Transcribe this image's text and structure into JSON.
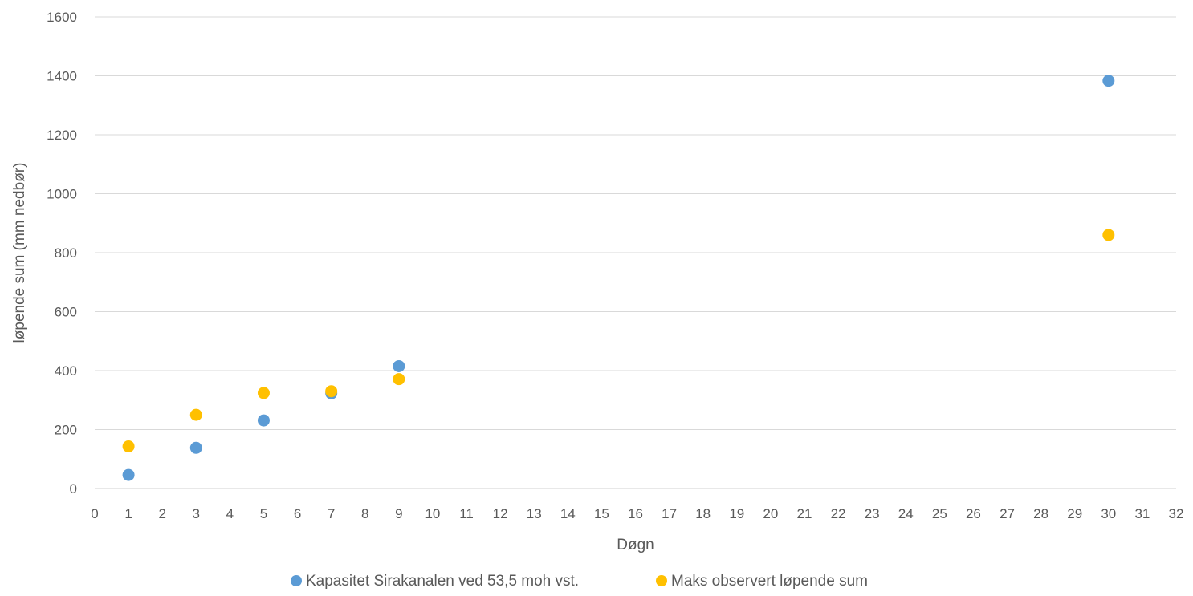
{
  "chart_data": {
    "type": "scatter",
    "title": "",
    "xlabel": "Døgn",
    "ylabel": "løpende sum (mm nedbør)",
    "xlim": [
      0,
      32
    ],
    "ylim": [
      0,
      1600
    ],
    "xticks": [
      0,
      1,
      2,
      3,
      4,
      5,
      6,
      7,
      8,
      9,
      10,
      11,
      12,
      13,
      14,
      15,
      16,
      17,
      18,
      19,
      20,
      21,
      22,
      23,
      24,
      25,
      26,
      27,
      28,
      29,
      30,
      31,
      32
    ],
    "yticks": [
      0,
      200,
      400,
      600,
      800,
      1000,
      1200,
      1400,
      1600
    ],
    "grid": "horizontal",
    "legend_position": "bottom",
    "series": [
      {
        "name": "Kapasitet Sirakanalen ved 53,5 moh vst.",
        "color": "#5b9bd5",
        "points": [
          [
            1,
            46
          ],
          [
            3,
            138
          ],
          [
            5,
            231
          ],
          [
            7,
            323
          ],
          [
            9,
            415
          ],
          [
            30,
            1383
          ]
        ]
      },
      {
        "name": "Maks observert løpende sum",
        "color": "#ffc000",
        "points": [
          [
            1,
            143
          ],
          [
            3,
            250
          ],
          [
            5,
            324
          ],
          [
            7,
            330
          ],
          [
            9,
            371
          ],
          [
            30,
            860
          ]
        ]
      }
    ]
  }
}
